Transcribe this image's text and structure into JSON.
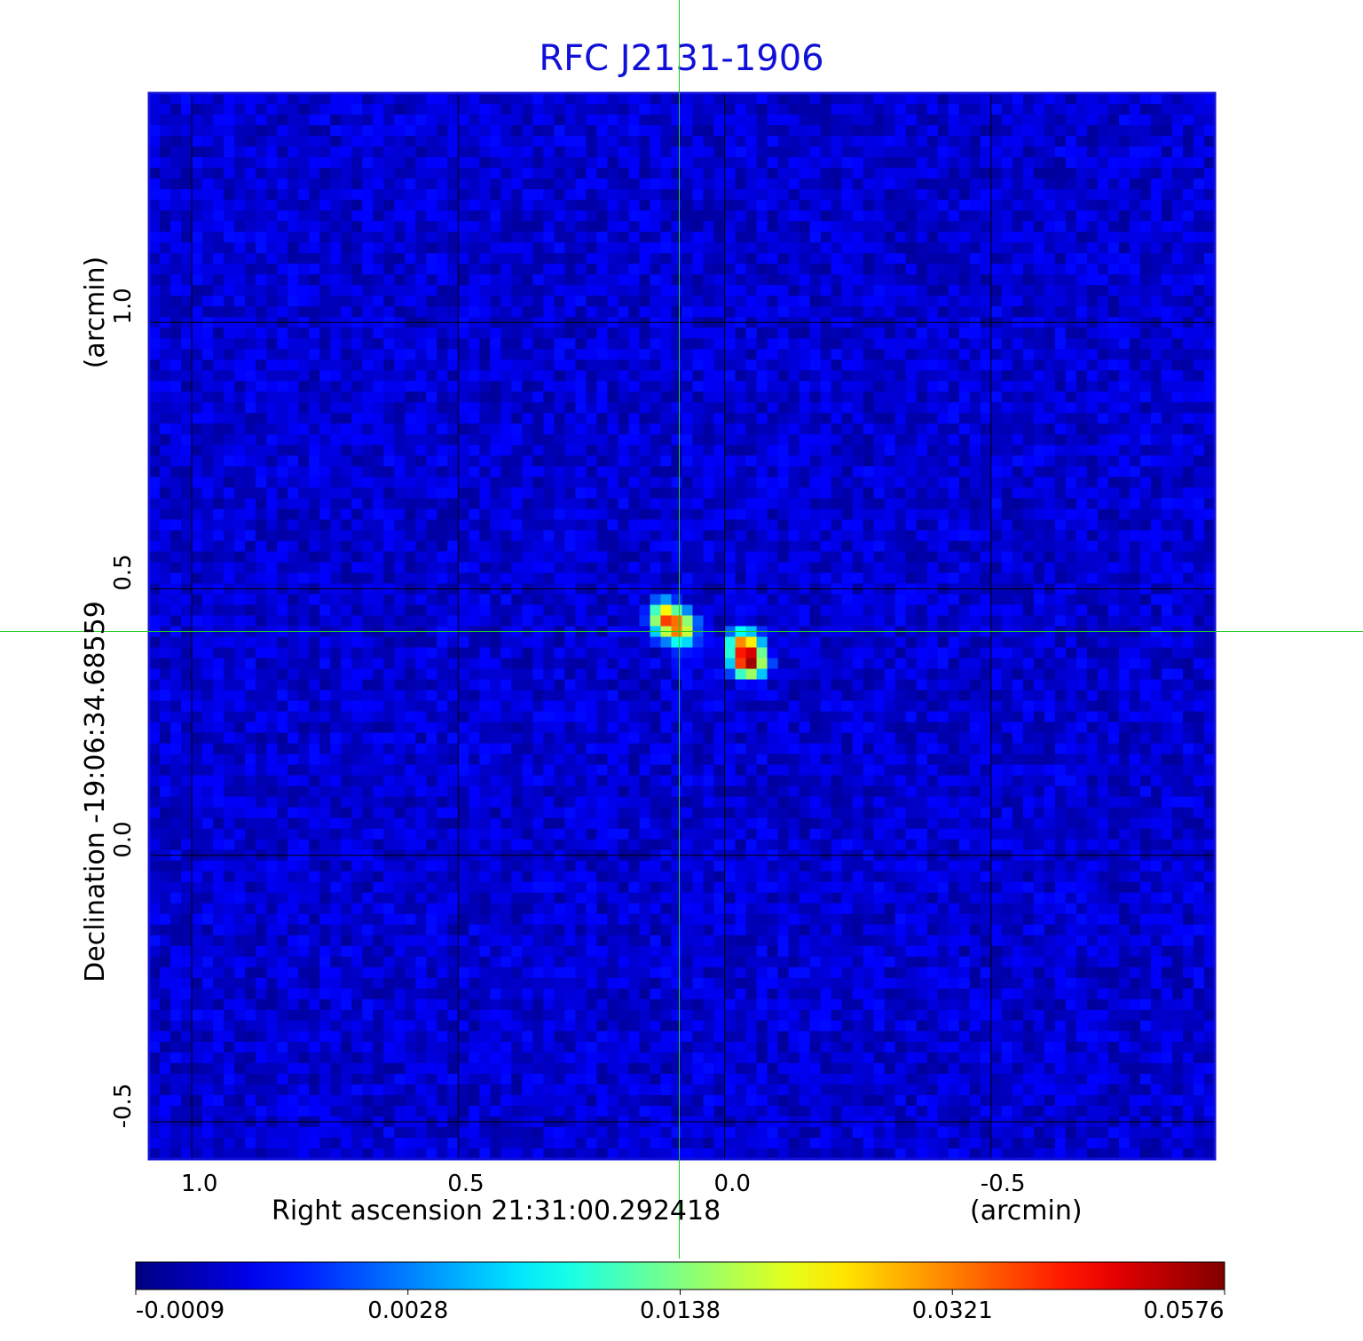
{
  "chart_data": {
    "type": "heatmap",
    "title": "RFC J2131-1906",
    "xlabel": "Right ascension  21:31:00.292418",
    "xunit": "(arcmin)",
    "ylabel": "Declination  -19:06:34.68559",
    "yunit": "(arcmin)",
    "xlim": [
      1.08,
      -0.92
    ],
    "ylim": [
      -0.57,
      1.43
    ],
    "x_ticks": [
      {
        "value": 1.0,
        "label": "1.0"
      },
      {
        "value": 0.5,
        "label": "0.5"
      },
      {
        "value": 0.0,
        "label": "0.0"
      },
      {
        "value": -0.5,
        "label": "-0.5"
      }
    ],
    "y_ticks": [
      {
        "value": 1.0,
        "label": "1.0"
      },
      {
        "value": 0.5,
        "label": "0.5"
      },
      {
        "value": 0.0,
        "label": "0.0"
      },
      {
        "value": -0.5,
        "label": "-0.5"
      }
    ],
    "grid": true,
    "crosshair": {
      "x": 0.085,
      "y": 0.42,
      "color": "#22cc22"
    },
    "colormap": "jet",
    "colorbar": {
      "placement": "bottom",
      "labels": [
        "-0.0009",
        "0.0028",
        "0.0138",
        "0.0321",
        "0.0576"
      ],
      "min": -0.0009,
      "max": 0.0576
    },
    "sources": [
      {
        "x": 0.11,
        "y": 0.445,
        "peak": 0.034
      },
      {
        "x": 0.085,
        "y": 0.425,
        "peak": 0.03
      },
      {
        "x": -0.045,
        "y": 0.365,
        "peak": 0.0576
      },
      {
        "x": -0.035,
        "y": 0.395,
        "peak": 0.03
      }
    ]
  }
}
